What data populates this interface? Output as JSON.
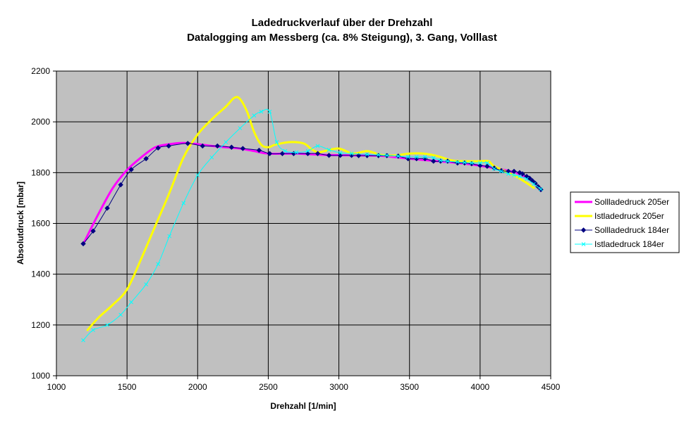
{
  "chart_data": {
    "type": "line",
    "title": "Ladedruckverlauf über der Drehzahl",
    "subtitle": "Datalogging am Messberg (ca. 8% Steigung), 3. Gang, Volllast",
    "xlabel": "Drehzahl [1/min]",
    "ylabel": "Absolutdruck [mbar]",
    "xlim": [
      1000,
      4500
    ],
    "ylim": [
      1000,
      2200
    ],
    "xticks": [
      1000,
      1500,
      2000,
      2500,
      3000,
      3500,
      4000,
      4500
    ],
    "yticks": [
      1000,
      1200,
      1400,
      1600,
      1800,
      2000,
      2200
    ],
    "xtick_labels": [
      "1000",
      "1500",
      "2000",
      "2500",
      "3000",
      "3500",
      "4000",
      "4500"
    ],
    "ytick_labels": [
      "1000",
      "1200",
      "1400",
      "1600",
      "1800",
      "2000",
      "2200"
    ],
    "plot_background": "#C0C0C0",
    "grid": true,
    "legend_position": "right",
    "series": [
      {
        "name": "Sollladedruck 205er",
        "color": "#FF00FF",
        "marker": "none",
        "x": [
          1200,
          1300,
          1400,
          1500,
          1600,
          1700,
          1800,
          1900,
          2000,
          2100,
          2200,
          2300,
          2400,
          2500,
          2700,
          2900,
          3100,
          3300,
          3500,
          3700,
          3900,
          4100,
          4250,
          4350
        ],
        "y": [
          1530,
          1640,
          1740,
          1810,
          1860,
          1900,
          1912,
          1917,
          1912,
          1905,
          1900,
          1895,
          1885,
          1875,
          1875,
          1870,
          1868,
          1866,
          1855,
          1845,
          1835,
          1818,
          1800,
          1775
        ]
      },
      {
        "name": "Istladedruck 205er",
        "color": "#FFFF00",
        "marker": "none",
        "x": [
          1220,
          1300,
          1400,
          1500,
          1600,
          1700,
          1800,
          1900,
          2000,
          2100,
          2200,
          2260,
          2300,
          2350,
          2400,
          2450,
          2500,
          2550,
          2650,
          2750,
          2800,
          2850,
          2900,
          3000,
          3100,
          3200,
          3300,
          3400,
          3500,
          3600,
          3700,
          3800,
          3900,
          4000,
          4060,
          4100,
          4200,
          4300,
          4380
        ],
        "y": [
          1180,
          1230,
          1280,
          1340,
          1460,
          1590,
          1720,
          1860,
          1950,
          2010,
          2060,
          2095,
          2090,
          2040,
          1960,
          1910,
          1900,
          1910,
          1920,
          1915,
          1895,
          1880,
          1885,
          1895,
          1875,
          1885,
          1870,
          1868,
          1875,
          1875,
          1865,
          1848,
          1845,
          1845,
          1845,
          1825,
          1800,
          1770,
          1740
        ]
      },
      {
        "name": "Sollladedruck 184er",
        "color": "#000080",
        "marker": "diamond",
        "x": [
          1190,
          1260,
          1360,
          1455,
          1530,
          1635,
          1720,
          1795,
          1930,
          2035,
          2140,
          2240,
          2320,
          2435,
          2510,
          2600,
          2680,
          2780,
          2850,
          2930,
          3010,
          3090,
          3140,
          3200,
          3280,
          3340,
          3420,
          3490,
          3550,
          3610,
          3670,
          3720,
          3770,
          3840,
          3890,
          3940,
          4000,
          4050,
          4100,
          4150,
          4200,
          4240,
          4280,
          4300,
          4330,
          4350,
          4370,
          4390,
          4410,
          4430
        ],
        "y": [
          1520,
          1570,
          1660,
          1752,
          1812,
          1855,
          1897,
          1905,
          1915,
          1905,
          1905,
          1900,
          1895,
          1888,
          1875,
          1875,
          1875,
          1875,
          1875,
          1868,
          1868,
          1868,
          1867,
          1867,
          1867,
          1867,
          1865,
          1855,
          1855,
          1855,
          1845,
          1845,
          1845,
          1838,
          1838,
          1835,
          1828,
          1825,
          1818,
          1808,
          1805,
          1805,
          1800,
          1795,
          1785,
          1778,
          1768,
          1758,
          1745,
          1733
        ]
      },
      {
        "name": "Istladedruck 184er",
        "color": "#00FFFF",
        "marker": "x",
        "x": [
          1190,
          1260,
          1360,
          1455,
          1530,
          1635,
          1720,
          1800,
          1900,
          2000,
          2100,
          2200,
          2300,
          2400,
          2450,
          2510,
          2560,
          2620,
          2700,
          2780,
          2850,
          2930,
          3010,
          3090,
          3200,
          3280,
          3340,
          3420,
          3490,
          3550,
          3610,
          3670,
          3720,
          3770,
          3840,
          3890,
          3940,
          4000,
          4050,
          4100,
          4150,
          4200,
          4240,
          4280,
          4330,
          4380,
          4430
        ],
        "y": [
          1140,
          1180,
          1200,
          1240,
          1290,
          1360,
          1440,
          1550,
          1680,
          1790,
          1860,
          1920,
          1975,
          2025,
          2040,
          2040,
          1920,
          1885,
          1880,
          1885,
          1905,
          1890,
          1878,
          1875,
          1872,
          1870,
          1868,
          1865,
          1862,
          1862,
          1862,
          1858,
          1848,
          1845,
          1842,
          1840,
          1838,
          1838,
          1838,
          1815,
          1805,
          1795,
          1790,
          1785,
          1775,
          1755,
          1735
        ]
      }
    ]
  }
}
